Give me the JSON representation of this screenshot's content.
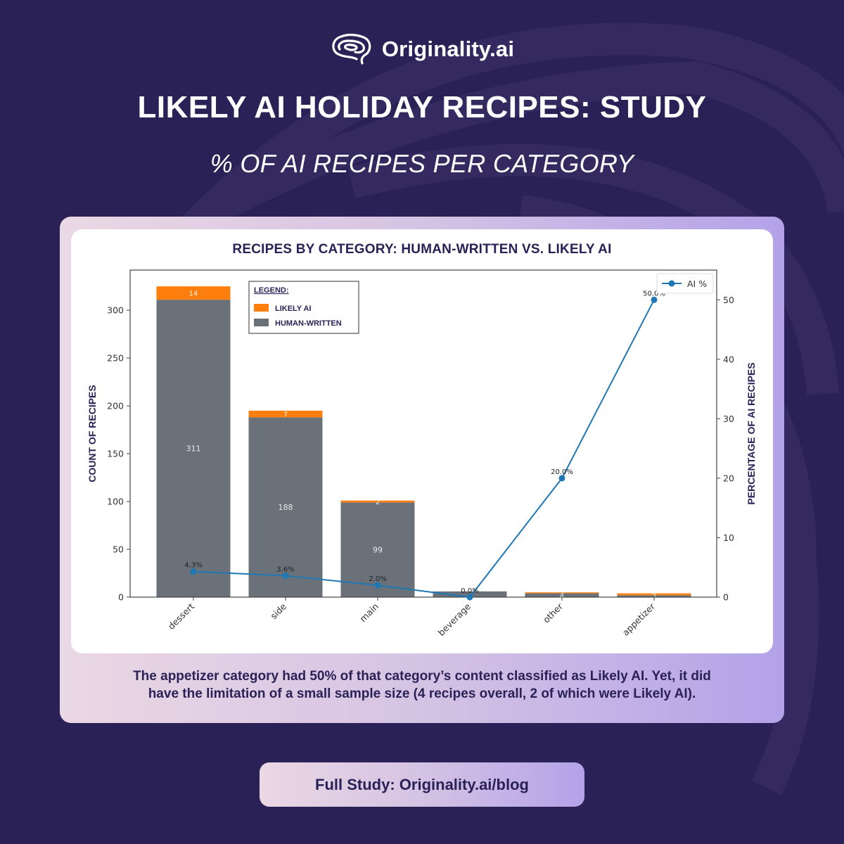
{
  "brand": {
    "name": "Originality.ai",
    "logo_icon": "brain-icon"
  },
  "header": {
    "title": "LIKELY AI HOLIDAY RECIPES: STUDY",
    "subtitle": "% OF AI RECIPES PER CATEGORY"
  },
  "colors": {
    "background": "#2a2156",
    "likely_ai": "#ff7f0e",
    "human_written": "#6b7179",
    "ai_pct_line": "#1f77b4",
    "title_text": "#2a2156",
    "card_gradient_start": "#ead8e4",
    "card_gradient_end": "#b3a2e8"
  },
  "legend": {
    "title": "LEGEND:",
    "items": [
      {
        "label": "LIKELY AI",
        "color": "#ff7f0e"
      },
      {
        "label": "HUMAN-WRITTEN",
        "color": "#6b7179"
      }
    ],
    "line_legend_label": "AI %"
  },
  "chart_data": {
    "type": "bar",
    "subtype": "stacked bar with secondary-axis line",
    "title": "RECIPES BY CATEGORY: HUMAN-WRITTEN VS. LIKELY AI",
    "xlabel": "",
    "ylabel": "COUNT OF RECIPES",
    "ylabel_right": "PERCENTAGE OF AI RECIPES",
    "categories": [
      "dessert",
      "side",
      "main",
      "beverage",
      "other",
      "appetizer"
    ],
    "series": [
      {
        "name": "HUMAN-WRITTEN",
        "axis": "left",
        "values": [
          311,
          188,
          99,
          6,
          4,
          2
        ],
        "value_labels": [
          "311",
          "188",
          "99",
          "",
          "4",
          "2"
        ]
      },
      {
        "name": "LIKELY AI",
        "axis": "left",
        "values": [
          14,
          7,
          2,
          0,
          1,
          2
        ],
        "value_labels": [
          "14",
          "7",
          "2",
          "",
          "",
          ""
        ]
      },
      {
        "name": "AI %",
        "type": "line",
        "axis": "right",
        "values": [
          4.3,
          3.6,
          2.0,
          0.0,
          20.0,
          50.0
        ],
        "value_labels": [
          "4.3%",
          "3.6%",
          "2.0%",
          "0.0%",
          "20.0%",
          "50.0%"
        ]
      }
    ],
    "ylim": [
      0,
      342
    ],
    "ylim_right": [
      0,
      55
    ],
    "yticks": [
      0,
      50,
      100,
      150,
      200,
      250,
      300
    ],
    "yticks_right": [
      0,
      10,
      20,
      30,
      40,
      50
    ],
    "grid": false,
    "legend_position": "upper left (bars), upper right (line)"
  },
  "caption": {
    "line1": "The appetizer category had 50% of that category’s content classified as Likely AI. Yet, it did",
    "line2": "have the limitation of a small sample size (4 recipes overall, 2 of which were Likely AI)."
  },
  "cta": {
    "label": "Full Study: Originality.ai/blog"
  }
}
